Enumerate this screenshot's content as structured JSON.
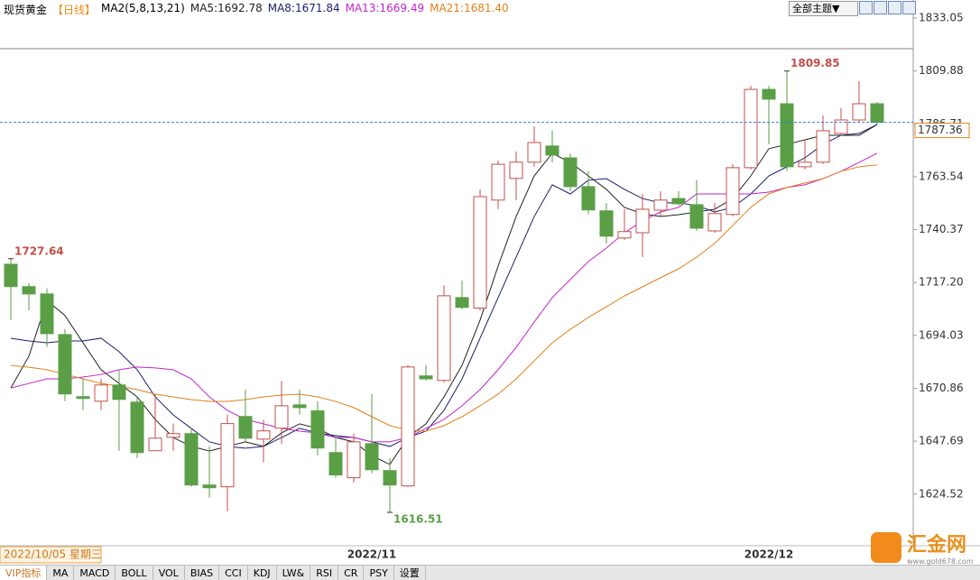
{
  "header": {
    "instrument": "现货黄金",
    "period": "【日线】",
    "indicator": "MA2(5,8,13,21)",
    "theme_button": "全部主题▼"
  },
  "watermark": {
    "name": "汇金网",
    "url": "www.gold678.com"
  },
  "tabs": [
    "VIP指标",
    "MA",
    "MACD",
    "BOLL",
    "VOL",
    "BIAS",
    "CCI",
    "KDJ",
    "LW&",
    "RSI",
    "CR",
    "PSY",
    "设置"
  ],
  "chart_data": {
    "type": "candlestick",
    "up_color": "#c0504d",
    "down_color": "#5a9e46",
    "categories": [
      "2022/10/05 星期三",
      null,
      null,
      null,
      null,
      null,
      null,
      null,
      null,
      null,
      null,
      null,
      null,
      null,
      null,
      null,
      null,
      null,
      null,
      null,
      "2022/11",
      null,
      null,
      null,
      null,
      null,
      null,
      null,
      null,
      null,
      null,
      null,
      null,
      null,
      null,
      null,
      null,
      null,
      null,
      null,
      null,
      null,
      "2022/12",
      null,
      null,
      null,
      null,
      null,
      null
    ],
    "open": [
      1725.2,
      1715.4,
      1712.2,
      1694.4,
      1667.2,
      1665.2,
      1672.3,
      1664.8,
      1643.5,
      1649.4,
      1651.0,
      1628.5,
      1627.7,
      1658.5,
      1648.6,
      1653.4,
      1663.6,
      1661.0,
      1642.7,
      1631.7,
      1646.6,
      1634.8,
      1628.1,
      1676.3,
      1674.3,
      1710.6,
      1706.0,
      1753.3,
      1762.8,
      1769.9,
      1777.0,
      1771.8,
      1759.2,
      1748.6,
      1736.7,
      1739.0,
      1748.9,
      1754.0,
      1751.3,
      1739.8,
      1747.0,
      1767.5,
      1801.8,
      1795.5,
      1767.9,
      1769.9,
      1782.5,
      1788.4,
      1795.5
    ],
    "high": [
      1727.64,
      1717.0,
      1714.6,
      1696.8,
      1675.0,
      1675.0,
      1679.0,
      1667.2,
      1668.0,
      1655.4,
      1653.4,
      1645.5,
      1659.3,
      1670.3,
      1657.0,
      1674.0,
      1670.3,
      1665.2,
      1650.6,
      1651.0,
      1668.4,
      1640.3,
      1681.0,
      1681.0,
      1716.0,
      1718.0,
      1758.0,
      1770.6,
      1774.6,
      1785.7,
      1783.7,
      1773.8,
      1766.0,
      1752.0,
      1749.3,
      1756.0,
      1757.2,
      1757.2,
      1762.0,
      1752.0,
      1769.0,
      1803.4,
      1803.4,
      1809.85,
      1779.7,
      1790.4,
      1793.6,
      1805.4,
      1796.3
    ],
    "low": [
      1700.8,
      1705.0,
      1689.0,
      1665.2,
      1661.3,
      1661.3,
      1643.5,
      1640.3,
      1643.5,
      1643.5,
      1627.7,
      1623.0,
      1617.0,
      1647.4,
      1638.4,
      1646.6,
      1659.3,
      1641.5,
      1631.7,
      1629.6,
      1633.6,
      1616.51,
      1627.7,
      1674.3,
      1673.5,
      1705.5,
      1705.1,
      1749.4,
      1753.3,
      1767.9,
      1769.9,
      1757.2,
      1747.0,
      1734.3,
      1735.9,
      1728.4,
      1746.2,
      1750.9,
      1739.8,
      1739.0,
      1746.2,
      1766.7,
      1777.8,
      1766.0,
      1766.7,
      1769.1,
      1781.7,
      1787.6,
      1786.5
    ],
    "close": [
      1715.4,
      1712.2,
      1694.8,
      1668.4,
      1666.4,
      1672.3,
      1666.0,
      1642.7,
      1649.0,
      1651.0,
      1628.5,
      1627.3,
      1655.4,
      1649.0,
      1652.2,
      1663.2,
      1662.4,
      1644.7,
      1632.9,
      1647.4,
      1635.2,
      1628.5,
      1680.2,
      1675.0,
      1711.4,
      1706.3,
      1754.8,
      1769.0,
      1769.9,
      1778.5,
      1773.0,
      1759.2,
      1749.0,
      1737.5,
      1739.5,
      1749.3,
      1753.3,
      1751.7,
      1741.0,
      1747.4,
      1767.5,
      1801.8,
      1797.5,
      1767.9,
      1769.9,
      1783.7,
      1788.4,
      1795.5,
      1787.36
    ],
    "ma": [
      {
        "name": "MA5:1692.78",
        "color": "#222222",
        "values": [
          1671.0,
          1684.9,
          1709.4,
          1702.7,
          1690.8,
          1679.0,
          1673.0,
          1667.1,
          1657.2,
          1649.3,
          1645.4,
          1643.4,
          1645.4,
          1647.4,
          1645.4,
          1651.3,
          1655.3,
          1653.3,
          1649.3,
          1647.4,
          1641.4,
          1637.5,
          1649.3,
          1655.3,
          1667.1,
          1680.9,
          1700.7,
          1724.4,
          1746.1,
          1763.9,
          1773.8,
          1769.8,
          1763.9,
          1758.0,
          1750.1,
          1747.3,
          1746.1,
          1746.9,
          1748.1,
          1749.3,
          1754.0,
          1763.9,
          1775.8,
          1777.7,
          1779.7,
          1781.7,
          1781.7,
          1781.7,
          1786.4
        ]
      },
      {
        "name": "MA8:1671.84",
        "color": "#1a1f6b",
        "values": [
          1692.8,
          1691.6,
          1690.8,
          1691.6,
          1691.6,
          1692.8,
          1686.9,
          1679.0,
          1667.1,
          1659.2,
          1653.3,
          1647.4,
          1645.4,
          1644.6,
          1645.4,
          1649.3,
          1653.3,
          1651.3,
          1650.1,
          1649.3,
          1647.4,
          1645.4,
          1649.3,
          1652.1,
          1661.2,
          1675.0,
          1692.8,
          1710.6,
          1728.3,
          1746.1,
          1760.0,
          1756.0,
          1762.0,
          1762.7,
          1758.0,
          1754.0,
          1752.1,
          1752.1,
          1750.9,
          1748.1,
          1750.1,
          1756.0,
          1763.9,
          1767.9,
          1771.8,
          1777.7,
          1781.7,
          1782.5,
          1786.4
        ]
      },
      {
        "name": "MA13:1669.49",
        "color": "#c026c8",
        "values": [
          1671.0,
          1673.0,
          1675.0,
          1675.0,
          1675.8,
          1676.9,
          1679.0,
          1680.2,
          1679.8,
          1679.0,
          1675.0,
          1667.1,
          1661.2,
          1657.2,
          1655.3,
          1653.3,
          1652.1,
          1651.3,
          1649.3,
          1649.3,
          1647.4,
          1647.4,
          1649.3,
          1653.3,
          1657.2,
          1663.2,
          1670.3,
          1679.0,
          1688.8,
          1699.9,
          1710.6,
          1718.5,
          1726.4,
          1732.3,
          1739.0,
          1744.2,
          1748.1,
          1750.1,
          1756.0,
          1756.0,
          1756.0,
          1756.0,
          1756.8,
          1758.8,
          1760.0,
          1762.7,
          1765.9,
          1769.8,
          1773.8
        ]
      },
      {
        "name": "MA21:1681.40",
        "color": "#e0801a",
        "values": [
          1680.9,
          1680.1,
          1679.0,
          1677.0,
          1675.0,
          1673.0,
          1671.8,
          1670.3,
          1668.3,
          1667.1,
          1665.9,
          1665.1,
          1665.1,
          1665.9,
          1667.1,
          1667.9,
          1668.3,
          1667.1,
          1665.1,
          1662.4,
          1658.4,
          1654.5,
          1652.5,
          1652.1,
          1654.5,
          1658.4,
          1663.2,
          1668.3,
          1675.0,
          1682.9,
          1690.8,
          1696.7,
          1701.9,
          1706.6,
          1711.3,
          1715.3,
          1719.3,
          1723.2,
          1728.3,
          1734.3,
          1742.2,
          1750.1,
          1756.0,
          1758.8,
          1760.8,
          1762.7,
          1765.9,
          1767.9,
          1768.7
        ]
      }
    ],
    "ylim": [
      1601.9,
      1840.95
    ],
    "yticks": [
      1833.05,
      1809.88,
      1786.71,
      1763.54,
      1740.37,
      {
        "value": 1717.2,
        "label": "1717.20"
      },
      1694.03,
      1670.86,
      1647.69,
      1624.52
    ]
  }
}
